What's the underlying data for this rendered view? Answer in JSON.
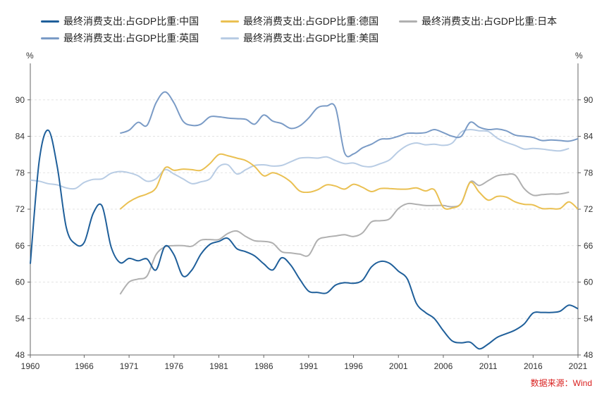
{
  "chart_data": {
    "type": "line",
    "unit_left": "%",
    "unit_right": "%",
    "source": "数据来源：Wind",
    "xlim": [
      1960,
      2021
    ],
    "ylim": [
      48,
      96
    ],
    "yticks": [
      48,
      54,
      60,
      66,
      72,
      78,
      84,
      90
    ],
    "xticks": [
      1960,
      1966,
      1971,
      1976,
      1981,
      1986,
      1991,
      1996,
      2001,
      2006,
      2011,
      2016,
      2021
    ],
    "grid": true,
    "legend_position": "top",
    "series": [
      {
        "name": "最终消费支出:占GDP比重:中国",
        "color": "#1f5f9a",
        "x": [
          1960,
          1961,
          1962,
          1963,
          1964,
          1965,
          1966,
          1967,
          1968,
          1969,
          1970,
          1971,
          1972,
          1973,
          1974,
          1975,
          1976,
          1977,
          1978,
          1979,
          1980,
          1981,
          1982,
          1983,
          1984,
          1985,
          1986,
          1987,
          1988,
          1989,
          1990,
          1991,
          1992,
          1993,
          1994,
          1995,
          1996,
          1997,
          1998,
          1999,
          2000,
          2001,
          2002,
          2003,
          2004,
          2005,
          2006,
          2007,
          2008,
          2009,
          2010,
          2011,
          2012,
          2013,
          2014,
          2015,
          2016,
          2017,
          2018,
          2019,
          2020,
          2021
        ],
        "y": [
          63,
          80,
          85,
          79,
          69,
          66.3,
          66.5,
          71.3,
          72.5,
          65.8,
          63.2,
          63.9,
          63.5,
          63.8,
          62,
          65.9,
          64.5,
          61,
          62,
          64.6,
          66.2,
          66.7,
          67.2,
          65.5,
          65,
          64.3,
          63,
          62,
          64,
          62.8,
          60.5,
          58.5,
          58.3,
          58.2,
          59.5,
          59.9,
          59.8,
          60.3,
          62.5,
          63.4,
          63.1,
          61.8,
          60.5,
          56.5,
          55,
          54,
          52,
          50.3,
          50,
          50.1,
          49,
          49.8,
          50.9,
          51.5,
          52.1,
          53.1,
          54.9,
          55,
          55,
          55.2,
          56.2,
          55.6
        ]
      },
      {
        "name": "最终消费支出:占GDP比重:德国",
        "color": "#eac052",
        "x": [
          1970,
          1971,
          1972,
          1973,
          1974,
          1975,
          1976,
          1977,
          1978,
          1979,
          1980,
          1981,
          1982,
          1983,
          1984,
          1985,
          1986,
          1987,
          1988,
          1989,
          1990,
          1991,
          1992,
          1993,
          1994,
          1995,
          1996,
          1997,
          1998,
          1999,
          2000,
          2001,
          2002,
          2003,
          2004,
          2005,
          2006,
          2007,
          2008,
          2009,
          2010,
          2011,
          2012,
          2013,
          2014,
          2015,
          2016,
          2017,
          2018,
          2019,
          2020,
          2021
        ],
        "y": [
          72,
          73.2,
          74,
          74.5,
          75.5,
          78.8,
          78.4,
          78.6,
          78.5,
          78.4,
          79.5,
          81,
          80.8,
          80.4,
          80,
          79,
          77.5,
          78,
          77.5,
          76.5,
          75,
          74.8,
          75.2,
          76,
          75.8,
          75.3,
          76.1,
          75.6,
          74.9,
          75.4,
          75.4,
          75.3,
          75.3,
          75.5,
          75,
          75.2,
          72.3,
          72.2,
          73,
          76.4,
          74.8,
          73.5,
          74.1,
          74,
          73.2,
          72.8,
          72.7,
          72.1,
          72.1,
          72.1,
          73.2,
          72
        ]
      },
      {
        "name": "最终消费支出:占GDP比重:日本",
        "color": "#b0b0b0",
        "x": [
          1970,
          1971,
          1972,
          1973,
          1974,
          1975,
          1976,
          1977,
          1978,
          1979,
          1980,
          1981,
          1982,
          1983,
          1984,
          1985,
          1986,
          1987,
          1988,
          1989,
          1990,
          1991,
          1992,
          1993,
          1994,
          1995,
          1996,
          1997,
          1998,
          1999,
          2000,
          2001,
          2002,
          2003,
          2004,
          2005,
          2006,
          2007,
          2008,
          2009,
          2010,
          2011,
          2012,
          2013,
          2014,
          2015,
          2016,
          2017,
          2018,
          2019,
          2020
        ],
        "y": [
          58,
          60,
          60.5,
          61,
          64.5,
          65.8,
          66,
          66,
          65.9,
          66.9,
          67,
          67,
          68,
          68.4,
          67.5,
          66.8,
          66.7,
          66.4,
          65,
          64.8,
          64.6,
          64.4,
          66.9,
          67.4,
          67.6,
          67.8,
          67.5,
          68.1,
          69.9,
          70.1,
          70.4,
          72.1,
          72.9,
          72.8,
          72.6,
          72.6,
          72.6,
          72.4,
          73,
          76.5,
          75.9,
          76.7,
          77.5,
          77.7,
          77.6,
          75.4,
          74.3,
          74.4,
          74.5,
          74.5,
          74.8
        ]
      },
      {
        "name": "最终消费支出:占GDP比重:英国",
        "color": "#7a9bc6",
        "x": [
          1970,
          1971,
          1972,
          1973,
          1974,
          1975,
          1976,
          1977,
          1978,
          1979,
          1980,
          1981,
          1982,
          1983,
          1984,
          1985,
          1986,
          1987,
          1988,
          1989,
          1990,
          1991,
          1992,
          1993,
          1994,
          1995,
          1996,
          1997,
          1998,
          1999,
          2000,
          2001,
          2002,
          2003,
          2004,
          2005,
          2006,
          2007,
          2008,
          2009,
          2010,
          2011,
          2012,
          2013,
          2014,
          2015,
          2016,
          2017,
          2018,
          2019,
          2020,
          2021
        ],
        "y": [
          84.5,
          85,
          86.3,
          85.8,
          89.5,
          91.3,
          89.5,
          86.5,
          85.8,
          86,
          87.2,
          87.2,
          87,
          86.9,
          86.8,
          86,
          87.5,
          86.5,
          86.1,
          85.3,
          85.7,
          87,
          88.7,
          89,
          88.7,
          81.3,
          81.1,
          82.1,
          82.7,
          83.5,
          83.6,
          84,
          84.5,
          84.5,
          84.6,
          85.1,
          84.6,
          84,
          84,
          86.3,
          85.5,
          85.1,
          85.2,
          84.9,
          84.2,
          84,
          83.8,
          83.3,
          83.4,
          83.3,
          83.2,
          83.6
        ]
      },
      {
        "name": "最终消费支出:占GDP比重:美国",
        "color": "#b8cce4",
        "x": [
          1960,
          1961,
          1962,
          1963,
          1964,
          1965,
          1966,
          1967,
          1968,
          1969,
          1970,
          1971,
          1972,
          1973,
          1974,
          1975,
          1976,
          1977,
          1978,
          1979,
          1980,
          1981,
          1982,
          1983,
          1984,
          1985,
          1986,
          1987,
          1988,
          1989,
          1990,
          1991,
          1992,
          1993,
          1994,
          1995,
          1996,
          1997,
          1998,
          1999,
          2000,
          2001,
          2002,
          2003,
          2004,
          2005,
          2006,
          2007,
          2008,
          2009,
          2010,
          2011,
          2012,
          2013,
          2014,
          2015,
          2016,
          2017,
          2018,
          2019,
          2020
        ],
        "y": [
          76.8,
          76.6,
          76.2,
          76,
          75.5,
          75.4,
          76.4,
          76.9,
          77,
          77.9,
          78.2,
          78,
          77.5,
          76.6,
          77,
          78.5,
          77.8,
          77,
          76.2,
          76.5,
          77,
          79,
          79.3,
          77.8,
          78.5,
          79.2,
          79.3,
          79.1,
          79.2,
          79.8,
          80.4,
          80.5,
          80.4,
          80.6,
          80,
          79.5,
          79.6,
          79.1,
          79,
          79.5,
          80.1,
          81.5,
          82.5,
          82.9,
          82.6,
          82.7,
          82.5,
          82.9,
          84.7,
          85.1,
          84.9,
          84.8,
          83.7,
          83,
          82.5,
          81.9,
          82,
          81.9,
          81.7,
          81.6,
          82
        ]
      }
    ]
  }
}
